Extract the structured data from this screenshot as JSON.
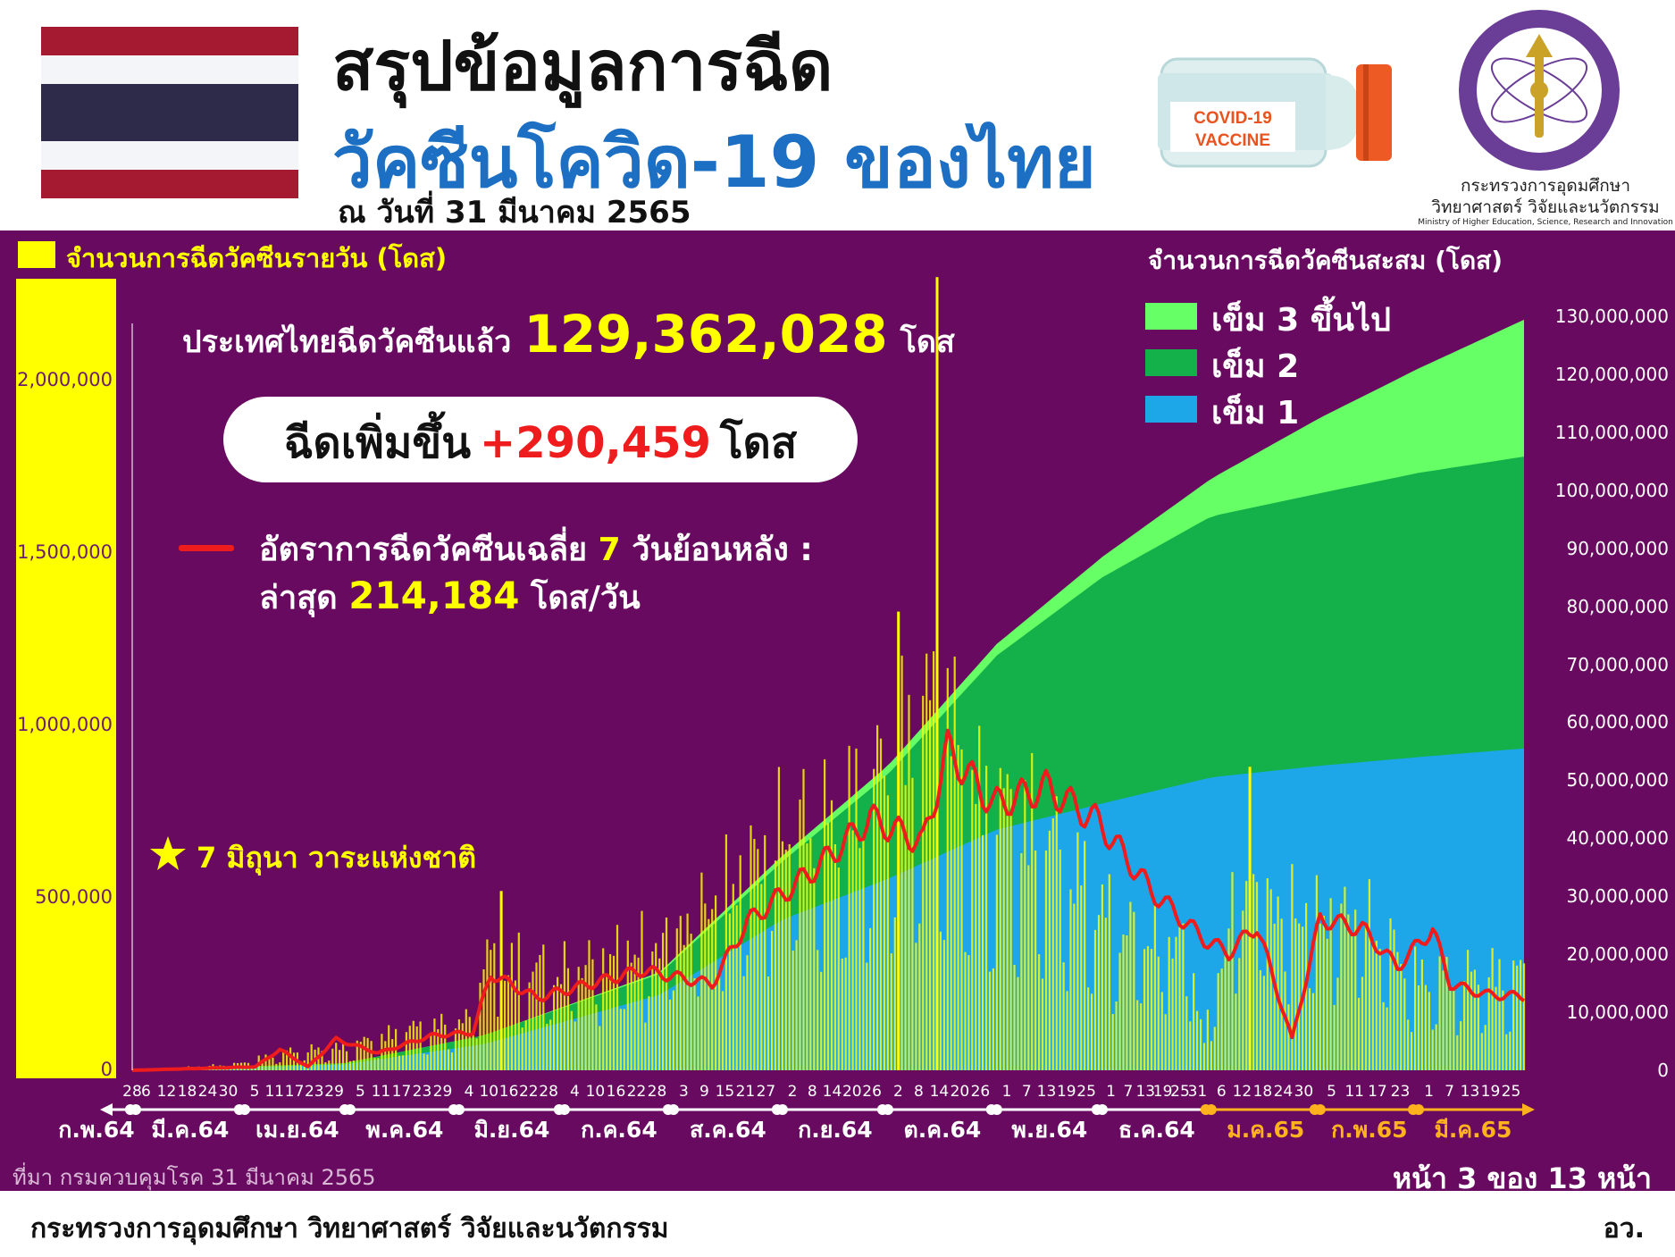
{
  "header": {
    "title_line1": "สรุปข้อมูลการฉีด",
    "title_line2": "วัคซีนโควิด-19 ของไทย",
    "date_line": "ณ วันที่ 31 มีนาคม 2565",
    "vaccine_label_1": "COVID-19",
    "vaccine_label_2": "VACCINE",
    "ministry_name_line1": "กระทรวงการอุดมศึกษา",
    "ministry_name_line2": "วิทยาศาสตร์ วิจัยและนวัตกรรม",
    "ministry_name_en": "Ministry of Higher Education, Science, Research and Innovation"
  },
  "summary": {
    "total_prefix": "ประเทศไทยฉีดวัคซีนแล้ว",
    "total_value": "129,362,028",
    "total_unit": "โดส",
    "increase_prefix": "ฉีดเพิ่มขึ้น",
    "increase_value": "+290,459",
    "increase_unit": "โดส",
    "avg_label_a": "อัตราการฉีดวัคซีนเฉลี่ย",
    "avg_days": "7",
    "avg_label_b": "วันย้อนหลัง :",
    "latest_label": "ล่าสุด",
    "latest_value": "214,184",
    "latest_unit": "โดส/วัน",
    "national_agenda": "7 มิถุนา วาระแห่งชาติ"
  },
  "footer": {
    "source": "ที่มา กรมควบคุมโรค 31 มีนาคม 2565",
    "page": "หน้า 3 ของ 13 หน้า",
    "ministry": "กระทรวงการอุดมศึกษา วิทยาศาสตร์ วิจัยและนวัตกรรม",
    "abbrev": "อว."
  },
  "colors": {
    "panel": "#680b60",
    "daily_bar": "#ffff00",
    "dose1": "#1ea7e8",
    "dose2": "#14b04a",
    "dose3": "#66ff66",
    "avg_line": "#ee1c1c",
    "title_blue": "#1c6fc2"
  },
  "chart_data": {
    "type": "bar+area+line",
    "left_axis": {
      "title": "จำนวนการฉีดวัคซีนรายวัน (โดส)",
      "ticks": [
        "0",
        "500,000",
        "1,000,000",
        "1,500,000",
        "2,000,000"
      ],
      "tick_values": [
        0,
        500000,
        1000000,
        1500000,
        2000000
      ],
      "ylim": [
        0,
        2000000
      ]
    },
    "right_axis": {
      "title": "จำนวนการฉีดวัคซีนสะสม (โดส)",
      "ticks": [
        "0",
        "10,000,000",
        "20,000,000",
        "30,000,000",
        "40,000,000",
        "50,000,000",
        "60,000,000",
        "70,000,000",
        "80,000,000",
        "90,000,000",
        "100,000,000",
        "110,000,000",
        "120,000,000",
        "130,000,000"
      ],
      "tick_values": [
        0,
        10000000,
        20000000,
        30000000,
        40000000,
        50000000,
        60000000,
        70000000,
        80000000,
        90000000,
        100000000,
        110000000,
        120000000,
        130000000
      ],
      "ylim": [
        0,
        130000000
      ]
    },
    "legend": [
      {
        "label": "เข็ม 3 ขึ้นไป",
        "color": "#66ff66"
      },
      {
        "label": "เข็ม 2",
        "color": "#14b04a"
      },
      {
        "label": "เข็ม 1",
        "color": "#1ea7e8"
      }
    ],
    "months": [
      {
        "label": "ก.พ.64",
        "start_day": 0,
        "ticks": [
          "28"
        ],
        "color": "#ffffff"
      },
      {
        "label": "มี.ค.64",
        "start_day": 1,
        "ticks": [
          "6",
          "12",
          "18",
          "24",
          "30"
        ],
        "color": "#ffffff"
      },
      {
        "label": "เม.ย.64",
        "start_day": 32,
        "ticks": [
          "5",
          "11",
          "17",
          "23",
          "29"
        ],
        "color": "#ffffff"
      },
      {
        "label": "พ.ค.64",
        "start_day": 62,
        "ticks": [
          "5",
          "11",
          "17",
          "23",
          "29"
        ],
        "color": "#ffffff"
      },
      {
        "label": "มิ.ย.64",
        "start_day": 93,
        "ticks": [
          "4",
          "10",
          "16",
          "22",
          "28"
        ],
        "color": "#ffffff"
      },
      {
        "label": "ก.ค.64",
        "start_day": 123,
        "ticks": [
          "4",
          "10",
          "16",
          "22",
          "28"
        ],
        "color": "#ffffff"
      },
      {
        "label": "ส.ค.64",
        "start_day": 154,
        "ticks": [
          "3",
          "9",
          "15",
          "21",
          "27"
        ],
        "color": "#ffffff"
      },
      {
        "label": "ก.ย.64",
        "start_day": 185,
        "ticks": [
          "2",
          "8",
          "14",
          "20",
          "26"
        ],
        "color": "#ffffff"
      },
      {
        "label": "ต.ค.64",
        "start_day": 215,
        "ticks": [
          "2",
          "8",
          "14",
          "20",
          "26"
        ],
        "color": "#ffffff"
      },
      {
        "label": "พ.ย.64",
        "start_day": 246,
        "ticks": [
          "1",
          "7",
          "13",
          "19",
          "25"
        ],
        "color": "#ffffff"
      },
      {
        "label": "ธ.ค.64",
        "start_day": 276,
        "ticks": [
          "1",
          "7",
          "13",
          "19",
          "25",
          "31"
        ],
        "color": "#ffffff"
      },
      {
        "label": "ม.ค.65",
        "start_day": 307,
        "ticks": [
          "6",
          "12",
          "18",
          "24",
          "30"
        ],
        "color": "#ffb21e"
      },
      {
        "label": "ก.พ.65",
        "start_day": 338,
        "ticks": [
          "5",
          "11",
          "17",
          "23"
        ],
        "color": "#ffb21e"
      },
      {
        "label": "มี.ค.65",
        "start_day": 366,
        "ticks": [
          "1",
          "7",
          "13",
          "19",
          "25"
        ],
        "color": "#ffb21e"
      }
    ],
    "day_count": 397,
    "cumulative_knots": [
      {
        "day": 0,
        "dose1": 0,
        "dose2": 0,
        "dose3": 0
      },
      {
        "day": 60,
        "dose1": 1000000,
        "dose2": 200000,
        "dose3": 0
      },
      {
        "day": 100,
        "dose1": 4500000,
        "dose2": 1500000,
        "dose3": 0
      },
      {
        "day": 150,
        "dose1": 13000000,
        "dose2": 3600000,
        "dose3": 300000
      },
      {
        "day": 185,
        "dose1": 26000000,
        "dose2": 10000000,
        "dose3": 1000000
      },
      {
        "day": 215,
        "dose1": 33000000,
        "dose2": 18000000,
        "dose3": 1500000
      },
      {
        "day": 246,
        "dose1": 41500000,
        "dose2": 30000000,
        "dose3": 2000000
      },
      {
        "day": 276,
        "dose1": 46000000,
        "dose2": 39000000,
        "dose3": 3500000
      },
      {
        "day": 307,
        "dose1": 50500000,
        "dose2": 45000000,
        "dose3": 6500000
      },
      {
        "day": 338,
        "dose1": 52500000,
        "dose2": 47000000,
        "dose3": 13000000
      },
      {
        "day": 366,
        "dose1": 54000000,
        "dose2": 49000000,
        "dose3": 18000000
      },
      {
        "day": 396,
        "dose1": 55500000,
        "dose2": 50300000,
        "dose3": 23600000
      }
    ],
    "daily_knots": [
      {
        "day": 0,
        "value": 0
      },
      {
        "day": 30,
        "value": 20000
      },
      {
        "day": 45,
        "value": 60000
      },
      {
        "day": 60,
        "value": 70000
      },
      {
        "day": 80,
        "value": 130000
      },
      {
        "day": 95,
        "value": 150000
      },
      {
        "day": 100,
        "value": 350000
      },
      {
        "day": 120,
        "value": 320000
      },
      {
        "day": 150,
        "value": 420000
      },
      {
        "day": 170,
        "value": 600000
      },
      {
        "day": 185,
        "value": 800000
      },
      {
        "day": 200,
        "value": 760000
      },
      {
        "day": 215,
        "value": 950000
      },
      {
        "day": 230,
        "value": 1150000
      },
      {
        "day": 240,
        "value": 850000
      },
      {
        "day": 260,
        "value": 750000
      },
      {
        "day": 280,
        "value": 450000
      },
      {
        "day": 300,
        "value": 420000
      },
      {
        "day": 305,
        "value": 100000
      },
      {
        "day": 315,
        "value": 620000
      },
      {
        "day": 335,
        "value": 500000
      },
      {
        "day": 350,
        "value": 520000
      },
      {
        "day": 365,
        "value": 300000
      },
      {
        "day": 396,
        "value": 300000
      }
    ],
    "avg_knots": [
      {
        "day": 0,
        "value": 0
      },
      {
        "day": 35,
        "value": 10000
      },
      {
        "day": 42,
        "value": 60000
      },
      {
        "day": 50,
        "value": 10000
      },
      {
        "day": 58,
        "value": 90000
      },
      {
        "day": 70,
        "value": 50000
      },
      {
        "day": 85,
        "value": 100000
      },
      {
        "day": 97,
        "value": 110000
      },
      {
        "day": 102,
        "value": 280000
      },
      {
        "day": 115,
        "value": 210000
      },
      {
        "day": 145,
        "value": 290000
      },
      {
        "day": 165,
        "value": 250000
      },
      {
        "day": 175,
        "value": 430000
      },
      {
        "day": 195,
        "value": 590000
      },
      {
        "day": 210,
        "value": 730000
      },
      {
        "day": 225,
        "value": 660000
      },
      {
        "day": 232,
        "value": 930000
      },
      {
        "day": 245,
        "value": 770000
      },
      {
        "day": 260,
        "value": 820000
      },
      {
        "day": 275,
        "value": 720000
      },
      {
        "day": 290,
        "value": 520000
      },
      {
        "day": 305,
        "value": 380000
      },
      {
        "day": 312,
        "value": 340000
      },
      {
        "day": 320,
        "value": 420000
      },
      {
        "day": 330,
        "value": 90000
      },
      {
        "day": 338,
        "value": 440000
      },
      {
        "day": 350,
        "value": 410000
      },
      {
        "day": 360,
        "value": 300000
      },
      {
        "day": 370,
        "value": 410000
      },
      {
        "day": 375,
        "value": 250000
      },
      {
        "day": 385,
        "value": 220000
      },
      {
        "day": 396,
        "value": 214184
      }
    ],
    "spikes": [
      {
        "day": 105,
        "value": 520000
      },
      {
        "day": 218,
        "value": 1330000
      },
      {
        "day": 229,
        "value": 2300000
      },
      {
        "day": 318,
        "value": 880000
      }
    ]
  }
}
